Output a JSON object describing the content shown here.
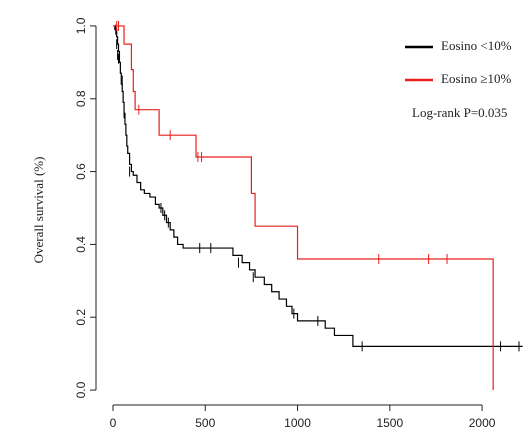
{
  "chart_data": {
    "type": "line",
    "step": true,
    "y_label": "Overall survival (%)",
    "annotation": "Log-rank P=0.035",
    "xlim": [
      -92,
      2265
    ],
    "ylim": [
      -0.03,
      1.03
    ],
    "xticks": [
      0,
      500,
      1000,
      1500,
      2000
    ],
    "yticks": [
      {
        "value": 0,
        "label": "0.0"
      },
      {
        "value": 0.2,
        "label": "0.2"
      },
      {
        "value": 0.4,
        "label": "0.4"
      },
      {
        "value": 0.6,
        "label": "0.6"
      },
      {
        "value": 0.8,
        "label": "0.8"
      },
      {
        "value": 1,
        "label": "1.0"
      }
    ],
    "legend": "top-right",
    "series": [
      {
        "name": "Eosino <10%",
        "color": "#000000",
        "x": [
          0,
          10,
          20,
          25,
          30,
          35,
          40,
          45,
          50,
          55,
          60,
          65,
          70,
          75,
          80,
          90,
          100,
          110,
          130,
          150,
          170,
          200,
          230,
          250,
          270,
          290,
          310,
          330,
          350,
          380,
          650,
          700,
          740,
          770,
          820,
          860,
          900,
          940,
          970,
          1000,
          1150,
          1200,
          1300,
          2220
        ],
        "values": [
          1.0,
          0.99,
          0.97,
          0.95,
          0.93,
          0.9,
          0.87,
          0.84,
          0.82,
          0.79,
          0.76,
          0.73,
          0.7,
          0.67,
          0.65,
          0.62,
          0.6,
          0.59,
          0.57,
          0.55,
          0.54,
          0.53,
          0.51,
          0.5,
          0.48,
          0.46,
          0.44,
          0.42,
          0.4,
          0.39,
          0.37,
          0.35,
          0.33,
          0.31,
          0.29,
          0.27,
          0.25,
          0.23,
          0.21,
          0.19,
          0.17,
          0.15,
          0.12,
          0.12
        ],
        "censor_x": [
          15,
          20,
          25,
          30,
          50,
          60,
          90,
          260,
          280,
          300,
          470,
          530,
          680,
          760,
          980,
          1110,
          1350,
          2100,
          2200
        ],
        "censor_values": [
          0.99,
          0.95,
          0.92,
          0.91,
          0.85,
          0.76,
          0.6,
          0.5,
          0.48,
          0.46,
          0.39,
          0.39,
          0.35,
          0.31,
          0.21,
          0.19,
          0.12,
          0.12,
          0.12
        ]
      },
      {
        "name": "Eosino ≥10%",
        "color": "#e8201c",
        "x": [
          0,
          60,
          100,
          110,
          120,
          250,
          450,
          750,
          770,
          1000,
          2060
        ],
        "values": [
          1.0,
          0.95,
          0.88,
          0.82,
          0.77,
          0.7,
          0.64,
          0.54,
          0.45,
          0.36,
          0.0
        ],
        "censor_x": [
          20,
          30,
          140,
          310,
          460,
          480,
          1440,
          1710,
          1810
        ],
        "censor_values": [
          1.0,
          1.0,
          0.77,
          0.7,
          0.64,
          0.64,
          0.36,
          0.36,
          0.36
        ]
      }
    ]
  }
}
